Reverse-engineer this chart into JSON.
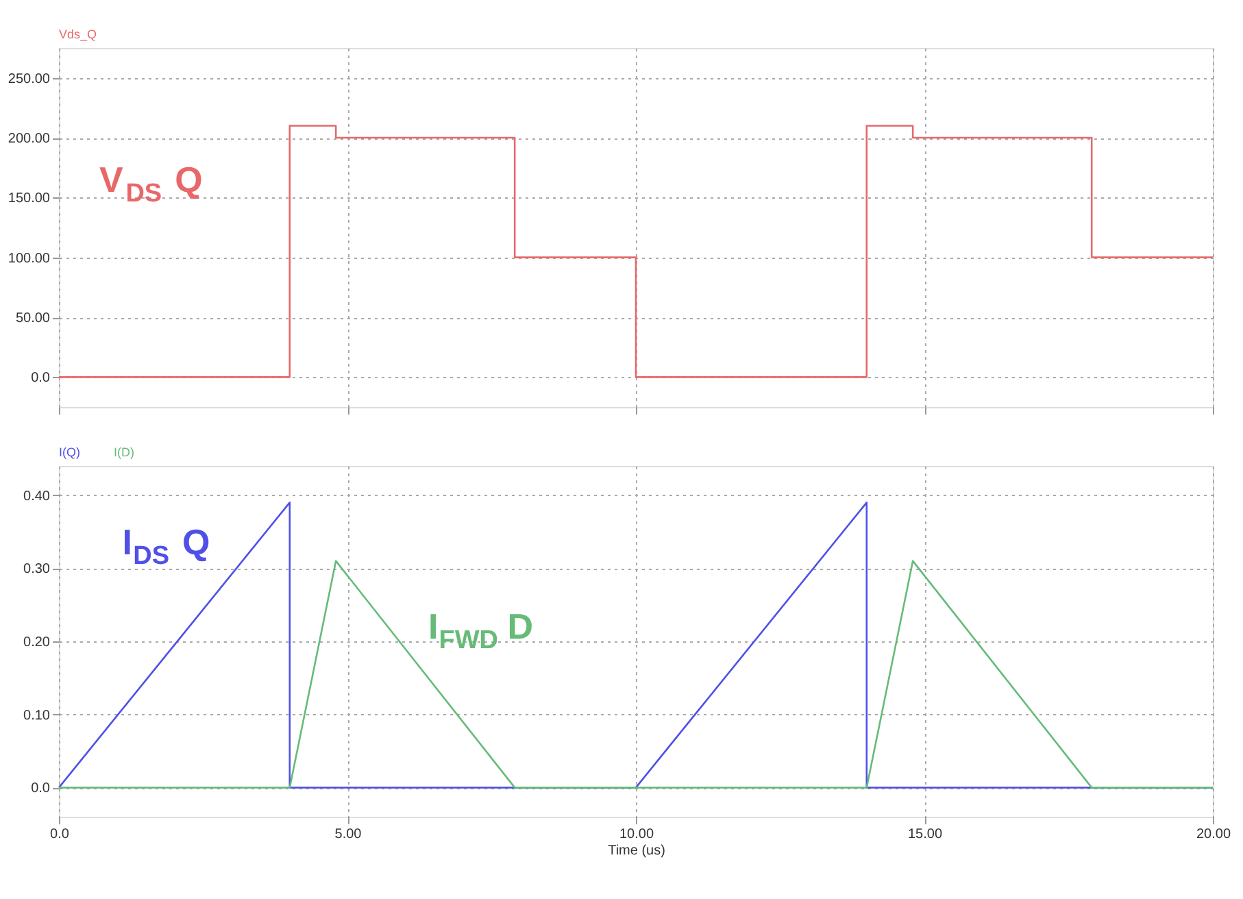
{
  "chart_data": [
    {
      "type": "line",
      "xlim": [
        0,
        20
      ],
      "ylim": [
        -25,
        275
      ],
      "xticks": [
        {
          "value": 0,
          "label": null
        },
        {
          "value": 5,
          "label": null
        },
        {
          "value": 10,
          "label": null
        },
        {
          "value": 15,
          "label": null
        },
        {
          "value": 20,
          "label": null
        }
      ],
      "yticks": [
        {
          "value": 0,
          "label": "0.0"
        },
        {
          "value": 50,
          "label": "50.00"
        },
        {
          "value": 100,
          "label": "100.00"
        },
        {
          "value": 150,
          "label": "150.00"
        },
        {
          "value": 200,
          "label": "200.00"
        },
        {
          "value": 250,
          "label": "250.00"
        }
      ],
      "tick_labels": "y",
      "grid": true,
      "series": [
        {
          "name": "Vds_Q",
          "color": "#e8686a",
          "x": [
            0,
            4,
            4,
            4.8,
            4.8,
            7.9,
            7.9,
            10,
            10,
            14,
            14,
            14.8,
            14.8,
            17.9,
            17.9,
            20
          ],
          "values": [
            0,
            0,
            210,
            210,
            200,
            200,
            100,
            100,
            0,
            0,
            210,
            210,
            200,
            200,
            100,
            100
          ]
        }
      ],
      "annotations": [
        "V$_{DS}$ Q"
      ]
    },
    {
      "type": "line",
      "xlim": [
        0,
        20
      ],
      "ylim": [
        -0.04,
        0.44
      ],
      "xlabel": "Time (us)",
      "xticks": [
        {
          "value": 0,
          "label": "0.0"
        },
        {
          "value": 5,
          "label": "5.00"
        },
        {
          "value": 10,
          "label": "10.00"
        },
        {
          "value": 15,
          "label": "15.00"
        },
        {
          "value": 20,
          "label": "20.00"
        }
      ],
      "yticks": [
        {
          "value": 0,
          "label": "0.0"
        },
        {
          "value": 0.1,
          "label": "0.10"
        },
        {
          "value": 0.2,
          "label": "0.20"
        },
        {
          "value": 0.3,
          "label": "0.30"
        },
        {
          "value": 0.4,
          "label": "0.40"
        }
      ],
      "grid": true,
      "series": [
        {
          "name": "I(Q)",
          "color": "#5050e8",
          "x": [
            0,
            4,
            4,
            10,
            14,
            14,
            20
          ],
          "values": [
            0,
            0.39,
            0,
            0,
            0.39,
            0,
            0
          ]
        },
        {
          "name": "I(D)",
          "color": "#66bb77",
          "x": [
            0,
            4,
            4.8,
            7.9,
            14,
            14.8,
            17.9,
            20
          ],
          "values": [
            0,
            0,
            0.31,
            0,
            0,
            0.31,
            0,
            0
          ]
        }
      ],
      "annotations": [
        "I$_{DS}$ Q",
        "I$_{FWD}$ D"
      ]
    }
  ]
}
